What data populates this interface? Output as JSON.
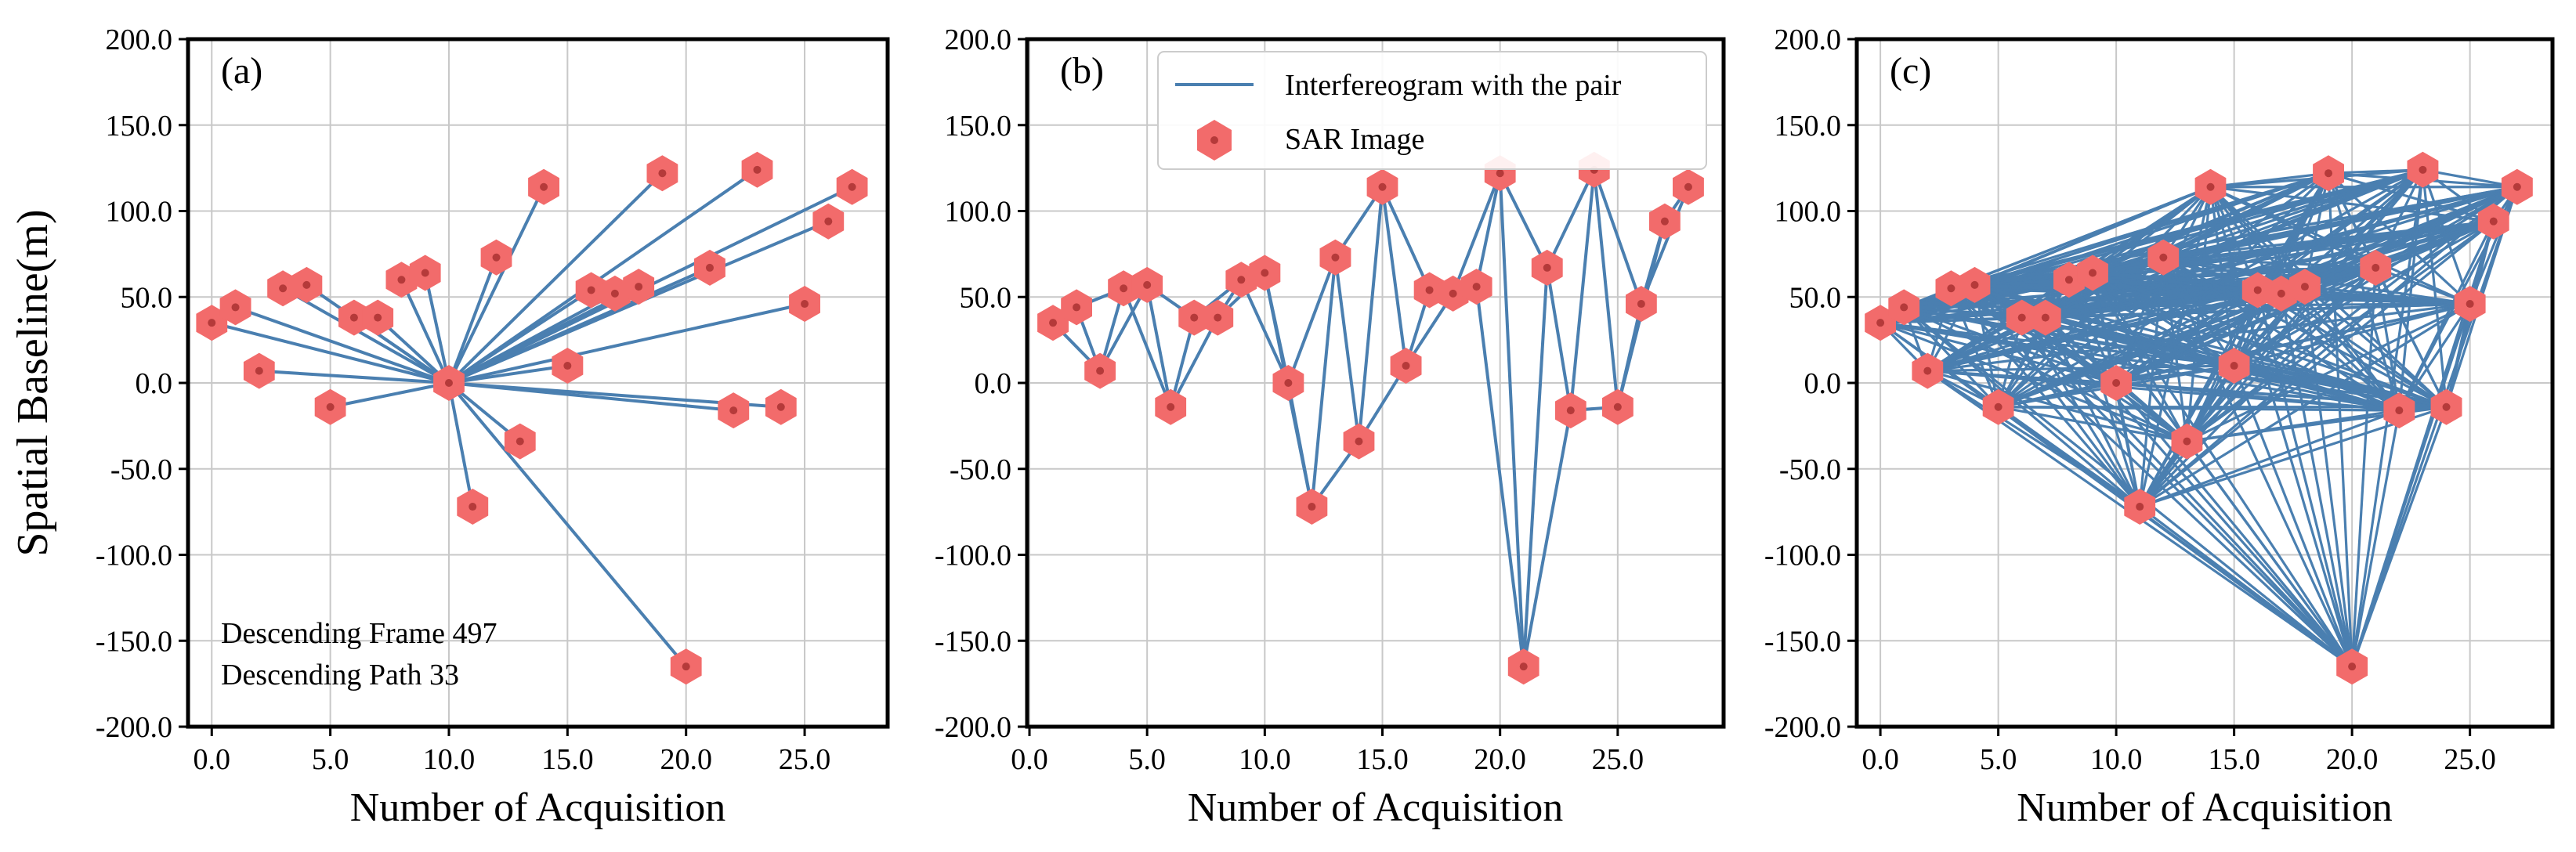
{
  "figure": {
    "ylabel": "Spatial Baseline(m)",
    "legend": {
      "line_label": "Interfereogram with the pair",
      "marker_label": "SAR Image",
      "line_color": "#4a7fb0",
      "marker_color": "#f26b6b"
    }
  },
  "chart_data": [
    {
      "type": "scatter",
      "panel": "(a)",
      "network": "star",
      "reference_index": 10,
      "xlabel": "Number of Acquisition",
      "ylabel": "Spatial Baseline(m)",
      "xlim": [
        -1,
        28.5
      ],
      "ylim": [
        -200,
        200
      ],
      "xticks": [
        "0.0",
        "5.0",
        "10.0",
        "15.0",
        "20.0",
        "25.0"
      ],
      "yticks": [
        "200.0",
        "150.0",
        "100.0",
        "50.0",
        "0.0",
        "-50.0",
        "-100.0",
        "-150.0",
        "-200.0"
      ],
      "annotations": [
        "Descending Frame 497",
        "Descending Path 33"
      ],
      "x": [
        0,
        1,
        2,
        3,
        4,
        5,
        6,
        7,
        8,
        9,
        10,
        11,
        12,
        13,
        14,
        15,
        16,
        17,
        18,
        19,
        20,
        21,
        22,
        23,
        24,
        25,
        26,
        27
      ],
      "y": [
        35,
        44,
        7,
        55,
        57,
        -14,
        38,
        38,
        60,
        64,
        0,
        -72,
        73,
        -34,
        114,
        10,
        54,
        52,
        56,
        122,
        -165,
        67,
        -16,
        124,
        -14,
        46,
        94,
        114
      ]
    },
    {
      "type": "scatter",
      "panel": "(b)",
      "network": "sequential",
      "xlabel": "Number of Acquisition",
      "ylabel": "",
      "xlim": [
        -0.1,
        29.5
      ],
      "ylim": [
        -200,
        200
      ],
      "xticks": [
        "0.0",
        "5.0",
        "10.0",
        "15.0",
        "20.0",
        "25.0"
      ],
      "yticks": [
        "200.0",
        "150.0",
        "100.0",
        "50.0",
        "0.0",
        "-50.0",
        "-100.0",
        "-150.0",
        "-200.0"
      ],
      "x": [
        1,
        2,
        3,
        4,
        5,
        6,
        7,
        8,
        9,
        10,
        11,
        12,
        13,
        14,
        15,
        16,
        17,
        18,
        19,
        20,
        21,
        22,
        23,
        24,
        25,
        26,
        27,
        28
      ],
      "y": [
        35,
        44,
        7,
        55,
        57,
        -14,
        38,
        38,
        60,
        64,
        0,
        -72,
        73,
        -34,
        114,
        10,
        54,
        52,
        56,
        122,
        -165,
        67,
        -16,
        124,
        -14,
        46,
        94,
        114
      ]
    },
    {
      "type": "scatter",
      "panel": "(c)",
      "network": "full",
      "xlabel": "Number of Acquisition",
      "ylabel": "",
      "xlim": [
        -1,
        28.5
      ],
      "ylim": [
        -200,
        200
      ],
      "xticks": [
        "0.0",
        "5.0",
        "10.0",
        "15.0",
        "20.0",
        "25.0"
      ],
      "yticks": [
        "200.0",
        "150.0",
        "100.0",
        "50.0",
        "0.0",
        "-50.0",
        "-100.0",
        "-150.0",
        "-200.0"
      ],
      "x": [
        0,
        1,
        2,
        3,
        4,
        5,
        6,
        7,
        8,
        9,
        10,
        11,
        12,
        13,
        14,
        15,
        16,
        17,
        18,
        19,
        20,
        21,
        22,
        23,
        24,
        25,
        26,
        27
      ],
      "y": [
        35,
        44,
        7,
        55,
        57,
        -14,
        38,
        38,
        60,
        64,
        0,
        -72,
        73,
        -34,
        114,
        10,
        54,
        52,
        56,
        122,
        -165,
        67,
        -16,
        124,
        -14,
        46,
        94,
        114
      ]
    }
  ]
}
